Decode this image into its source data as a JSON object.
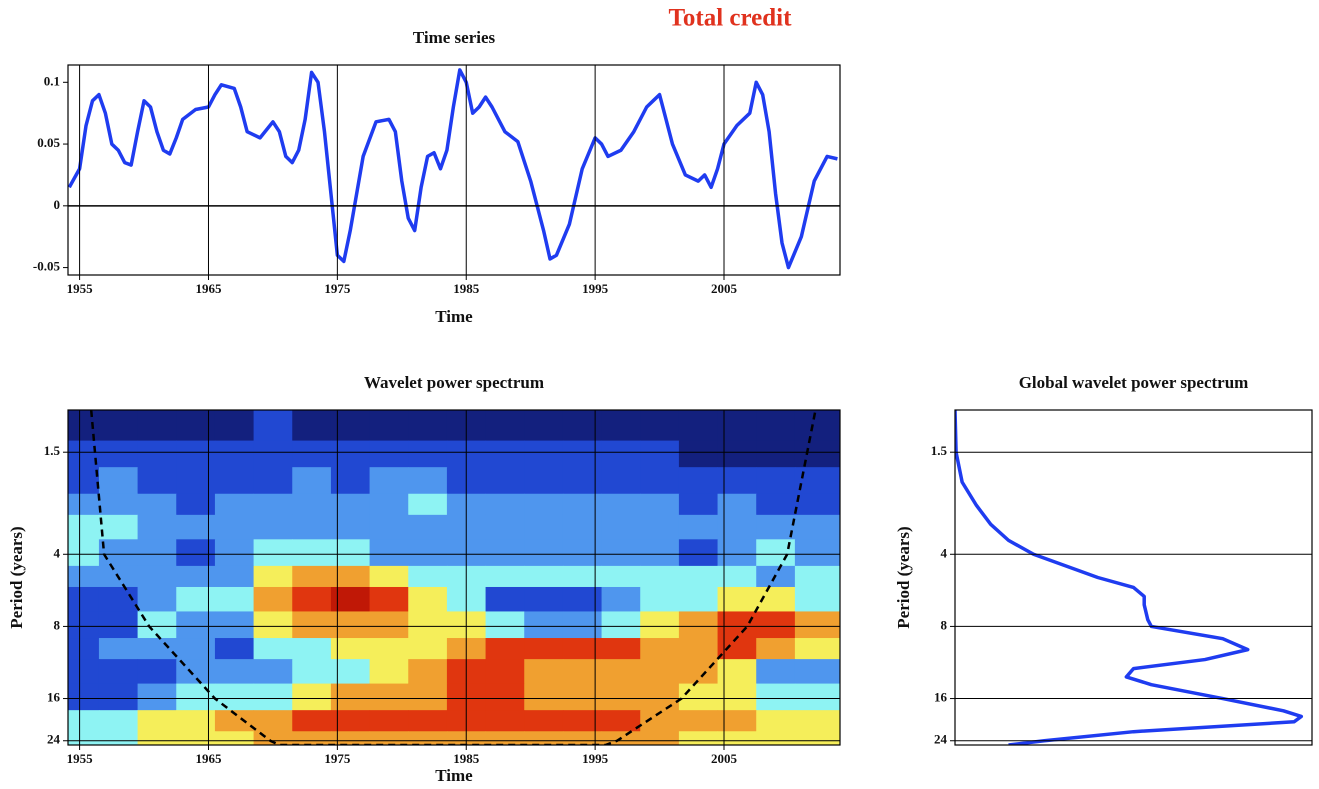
{
  "title": "Total credit",
  "chart_data": [
    {
      "type": "line",
      "title": "Time series",
      "xlabel": "Time",
      "color": "#1f3cf0",
      "grid": "x",
      "xlim": [
        1954.1,
        2014
      ],
      "ylim": [
        -0.056,
        0.114
      ],
      "xticks": [
        1955,
        1965,
        1975,
        1985,
        1995,
        2005
      ],
      "yticks": [
        -0.05,
        0,
        0.05,
        0.1
      ],
      "x": [
        1954.2,
        1955,
        1955.5,
        1956,
        1956.5,
        1957,
        1957.5,
        1958,
        1958.5,
        1959,
        1959.5,
        1960,
        1960.5,
        1961,
        1961.5,
        1962,
        1962.5,
        1963,
        1964,
        1965,
        1965.5,
        1966,
        1967,
        1967.5,
        1968,
        1969,
        1970,
        1970.5,
        1971,
        1971.5,
        1972,
        1972.5,
        1973,
        1973.5,
        1974,
        1974.5,
        1975,
        1975.5,
        1976,
        1977,
        1978,
        1979,
        1979.5,
        1980,
        1980.5,
        1981,
        1981.5,
        1982,
        1982.5,
        1983,
        1983.5,
        1984,
        1984.5,
        1985,
        1985.5,
        1986,
        1986.5,
        1987,
        1988,
        1989,
        1990,
        1991,
        1991.5,
        1992,
        1993,
        1994,
        1995,
        1995.5,
        1996,
        1997,
        1998,
        1999,
        1999.5,
        2000,
        2000.5,
        2001,
        2002,
        2003,
        2003.5,
        2004,
        2004.5,
        2005,
        2006,
        2007,
        2007.5,
        2008,
        2008.5,
        2009,
        2009.5,
        2010,
        2011,
        2012,
        2013,
        2013.8
      ],
      "values": [
        0.015,
        0.03,
        0.065,
        0.085,
        0.09,
        0.075,
        0.05,
        0.045,
        0.035,
        0.033,
        0.06,
        0.085,
        0.08,
        0.06,
        0.045,
        0.042,
        0.055,
        0.07,
        0.078,
        0.08,
        0.09,
        0.098,
        0.095,
        0.08,
        0.06,
        0.055,
        0.068,
        0.06,
        0.04,
        0.035,
        0.045,
        0.07,
        0.108,
        0.1,
        0.06,
        0.01,
        -0.04,
        -0.045,
        -0.02,
        0.04,
        0.068,
        0.07,
        0.06,
        0.02,
        -0.01,
        -0.02,
        0.015,
        0.04,
        0.043,
        0.03,
        0.045,
        0.08,
        0.11,
        0.1,
        0.075,
        0.08,
        0.088,
        0.08,
        0.06,
        0.052,
        0.02,
        -0.02,
        -0.043,
        -0.04,
        -0.015,
        0.03,
        0.055,
        0.05,
        0.04,
        0.045,
        0.06,
        0.08,
        0.085,
        0.09,
        0.07,
        0.05,
        0.025,
        0.02,
        0.025,
        0.015,
        0.03,
        0.05,
        0.065,
        0.075,
        0.1,
        0.09,
        0.06,
        0.01,
        -0.03,
        -0.05,
        -0.025,
        0.02,
        0.04,
        0.038
      ]
    },
    {
      "type": "heatmap",
      "title": "Wavelet power spectrum",
      "xlabel": "Time",
      "ylabel": "Period (years)",
      "grid": true,
      "xlim": [
        1954.1,
        2014
      ],
      "ylim": [
        1,
        25
      ],
      "log_y": true,
      "y_inverted": true,
      "xticks": [
        1955,
        1965,
        1975,
        1985,
        1995,
        2005
      ],
      "yticks": [
        1.5,
        4,
        8,
        16,
        24
      ],
      "colors": [
        "#13207e",
        "#2148d2",
        "#4f96ee",
        "#8ef3f3",
        "#f5ee5a",
        "#f0a030",
        "#e0360f",
        "#c01806"
      ],
      "x": [
        1955,
        1958,
        1961,
        1964,
        1967,
        1970,
        1973,
        1976,
        1979,
        1982,
        1985,
        1988,
        1991,
        1994,
        1997,
        2000,
        2003,
        2006,
        2009,
        2012
      ],
      "y": [
        1.2,
        1.5,
        2,
        2.5,
        3,
        4,
        5,
        6,
        8,
        10,
        12,
        16,
        20,
        24
      ],
      "z": [
        [
          0,
          0,
          0,
          0,
          0,
          1,
          0,
          0,
          0,
          0,
          0,
          0,
          0,
          0,
          0,
          0,
          0,
          0,
          0,
          0
        ],
        [
          1,
          1,
          1,
          1,
          1,
          1,
          1,
          1,
          1,
          1,
          1,
          1,
          1,
          1,
          1,
          1,
          0,
          0,
          0,
          0
        ],
        [
          1,
          2,
          1,
          1,
          1,
          1,
          2,
          1,
          2,
          2,
          1,
          1,
          1,
          1,
          1,
          1,
          1,
          1,
          1,
          1
        ],
        [
          2,
          2,
          2,
          1,
          2,
          2,
          2,
          2,
          2,
          3,
          2,
          2,
          2,
          2,
          2,
          2,
          1,
          2,
          1,
          1
        ],
        [
          3,
          3,
          2,
          2,
          2,
          2,
          2,
          2,
          2,
          2,
          2,
          2,
          2,
          2,
          2,
          2,
          2,
          2,
          2,
          2
        ],
        [
          3,
          2,
          2,
          1,
          2,
          3,
          3,
          3,
          2,
          2,
          2,
          2,
          2,
          2,
          2,
          2,
          1,
          2,
          3,
          2
        ],
        [
          2,
          2,
          2,
          2,
          2,
          4,
          5,
          5,
          4,
          3,
          3,
          3,
          3,
          3,
          3,
          3,
          3,
          3,
          2,
          3
        ],
        [
          1,
          1,
          2,
          3,
          3,
          5,
          6,
          7,
          6,
          4,
          3,
          1,
          1,
          1,
          2,
          3,
          3,
          4,
          4,
          3
        ],
        [
          1,
          1,
          3,
          2,
          2,
          4,
          5,
          5,
          5,
          4,
          4,
          3,
          2,
          2,
          3,
          4,
          5,
          6,
          6,
          5
        ],
        [
          1,
          2,
          2,
          2,
          1,
          3,
          3,
          4,
          4,
          4,
          5,
          6,
          6,
          6,
          6,
          5,
          5,
          6,
          5,
          4
        ],
        [
          1,
          1,
          1,
          2,
          2,
          2,
          3,
          3,
          4,
          5,
          6,
          6,
          5,
          5,
          5,
          5,
          5,
          4,
          2,
          2
        ],
        [
          1,
          1,
          2,
          3,
          3,
          3,
          4,
          5,
          5,
          5,
          6,
          6,
          5,
          5,
          5,
          5,
          4,
          4,
          3,
          3
        ],
        [
          3,
          3,
          4,
          4,
          5,
          5,
          6,
          6,
          6,
          6,
          6,
          6,
          6,
          6,
          6,
          5,
          5,
          5,
          4,
          4
        ],
        [
          3,
          3,
          4,
          4,
          4,
          5,
          5,
          5,
          5,
          5,
          5,
          5,
          5,
          5,
          5,
          5,
          4,
          4,
          4,
          4
        ]
      ],
      "coi": {
        "x": [
          1955.9,
          1956.9,
          1960.4,
          1965.5,
          1969.8,
          1970.5,
          1995.8,
          1996.7,
          2001.7,
          2006.8,
          2009.9,
          2012.1
        ],
        "y": [
          1,
          4,
          8,
          16,
          24,
          25,
          25,
          24,
          16,
          8,
          4,
          1
        ]
      }
    },
    {
      "type": "line",
      "orientation": "vertical",
      "title": "Global wavelet power spectrum",
      "ylabel": "Period (years)",
      "color": "#1f3cf0",
      "grid": "y",
      "xlim": [
        0,
        1
      ],
      "ylim": [
        1,
        25
      ],
      "log_y": true,
      "y_inverted": true,
      "yticks": [
        1.5,
        4,
        8,
        16,
        24
      ],
      "y": [
        1,
        1.5,
        2,
        2.5,
        3,
        3.5,
        4,
        5,
        5.5,
        6,
        6.5,
        7.5,
        8,
        9,
        10,
        11,
        12,
        13,
        14,
        16,
        18,
        19,
        20,
        22,
        24,
        25
      ],
      "values": [
        0,
        0.003,
        0.02,
        0.06,
        0.1,
        0.15,
        0.22,
        0.4,
        0.5,
        0.53,
        0.53,
        0.54,
        0.55,
        0.75,
        0.82,
        0.7,
        0.5,
        0.48,
        0.55,
        0.75,
        0.92,
        0.97,
        0.95,
        0.5,
        0.25,
        0.15
      ]
    }
  ]
}
